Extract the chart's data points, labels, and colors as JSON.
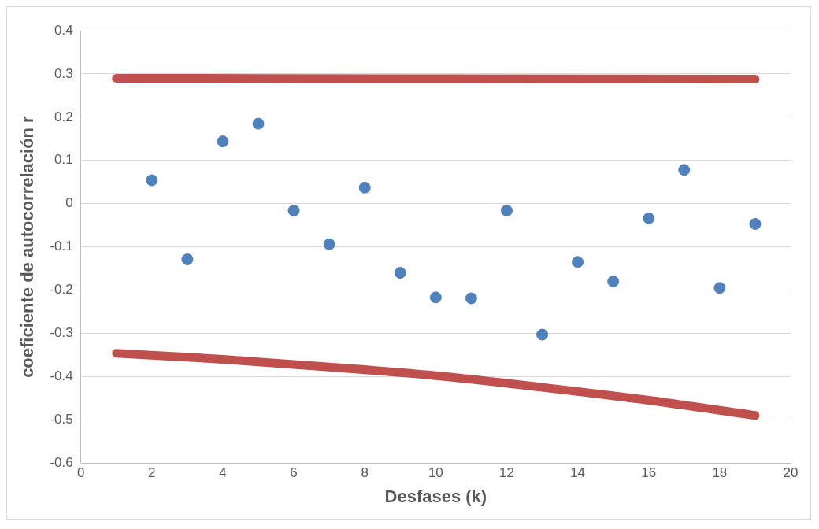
{
  "chart_data": {
    "type": "scatter",
    "xlabel": "Desfases (k)",
    "ylabel": "coeficiente de autocorrelación r",
    "xlim": [
      0,
      20
    ],
    "xticks": [
      0,
      2,
      4,
      6,
      8,
      10,
      12,
      14,
      16,
      18,
      20
    ],
    "ylim": [
      -0.6,
      0.4
    ],
    "yticks": [
      -0.6,
      -0.5,
      -0.4,
      -0.3,
      -0.2,
      -0.1,
      0,
      0.1,
      0.2,
      0.3,
      0.4
    ],
    "grid": "y",
    "legend": false,
    "series": [
      {
        "color": "#4f81bd",
        "marker": "circle",
        "x": [
          2,
          3,
          4,
          5,
          6,
          7,
          8,
          9,
          10,
          11,
          12,
          13,
          14,
          15,
          16,
          17,
          18,
          19
        ],
        "values": [
          0.054,
          -0.129,
          0.144,
          0.185,
          -0.016,
          -0.094,
          0.037,
          -0.16,
          -0.217,
          -0.219,
          -0.016,
          -0.303,
          -0.135,
          -0.18,
          -0.034,
          0.078,
          -0.195,
          -0.047
        ]
      },
      {
        "type": "line",
        "color": "#c0504d",
        "marker": "none",
        "x": [
          1,
          10,
          19
        ],
        "values": [
          0.29,
          0.289,
          0.288
        ]
      },
      {
        "type": "line",
        "color": "#c0504d",
        "marker": "none",
        "x": [
          1,
          4,
          7,
          10,
          13,
          16,
          19
        ],
        "values": [
          -0.346,
          -0.36,
          -0.378,
          -0.398,
          -0.425,
          -0.455,
          -0.49
        ]
      }
    ]
  }
}
